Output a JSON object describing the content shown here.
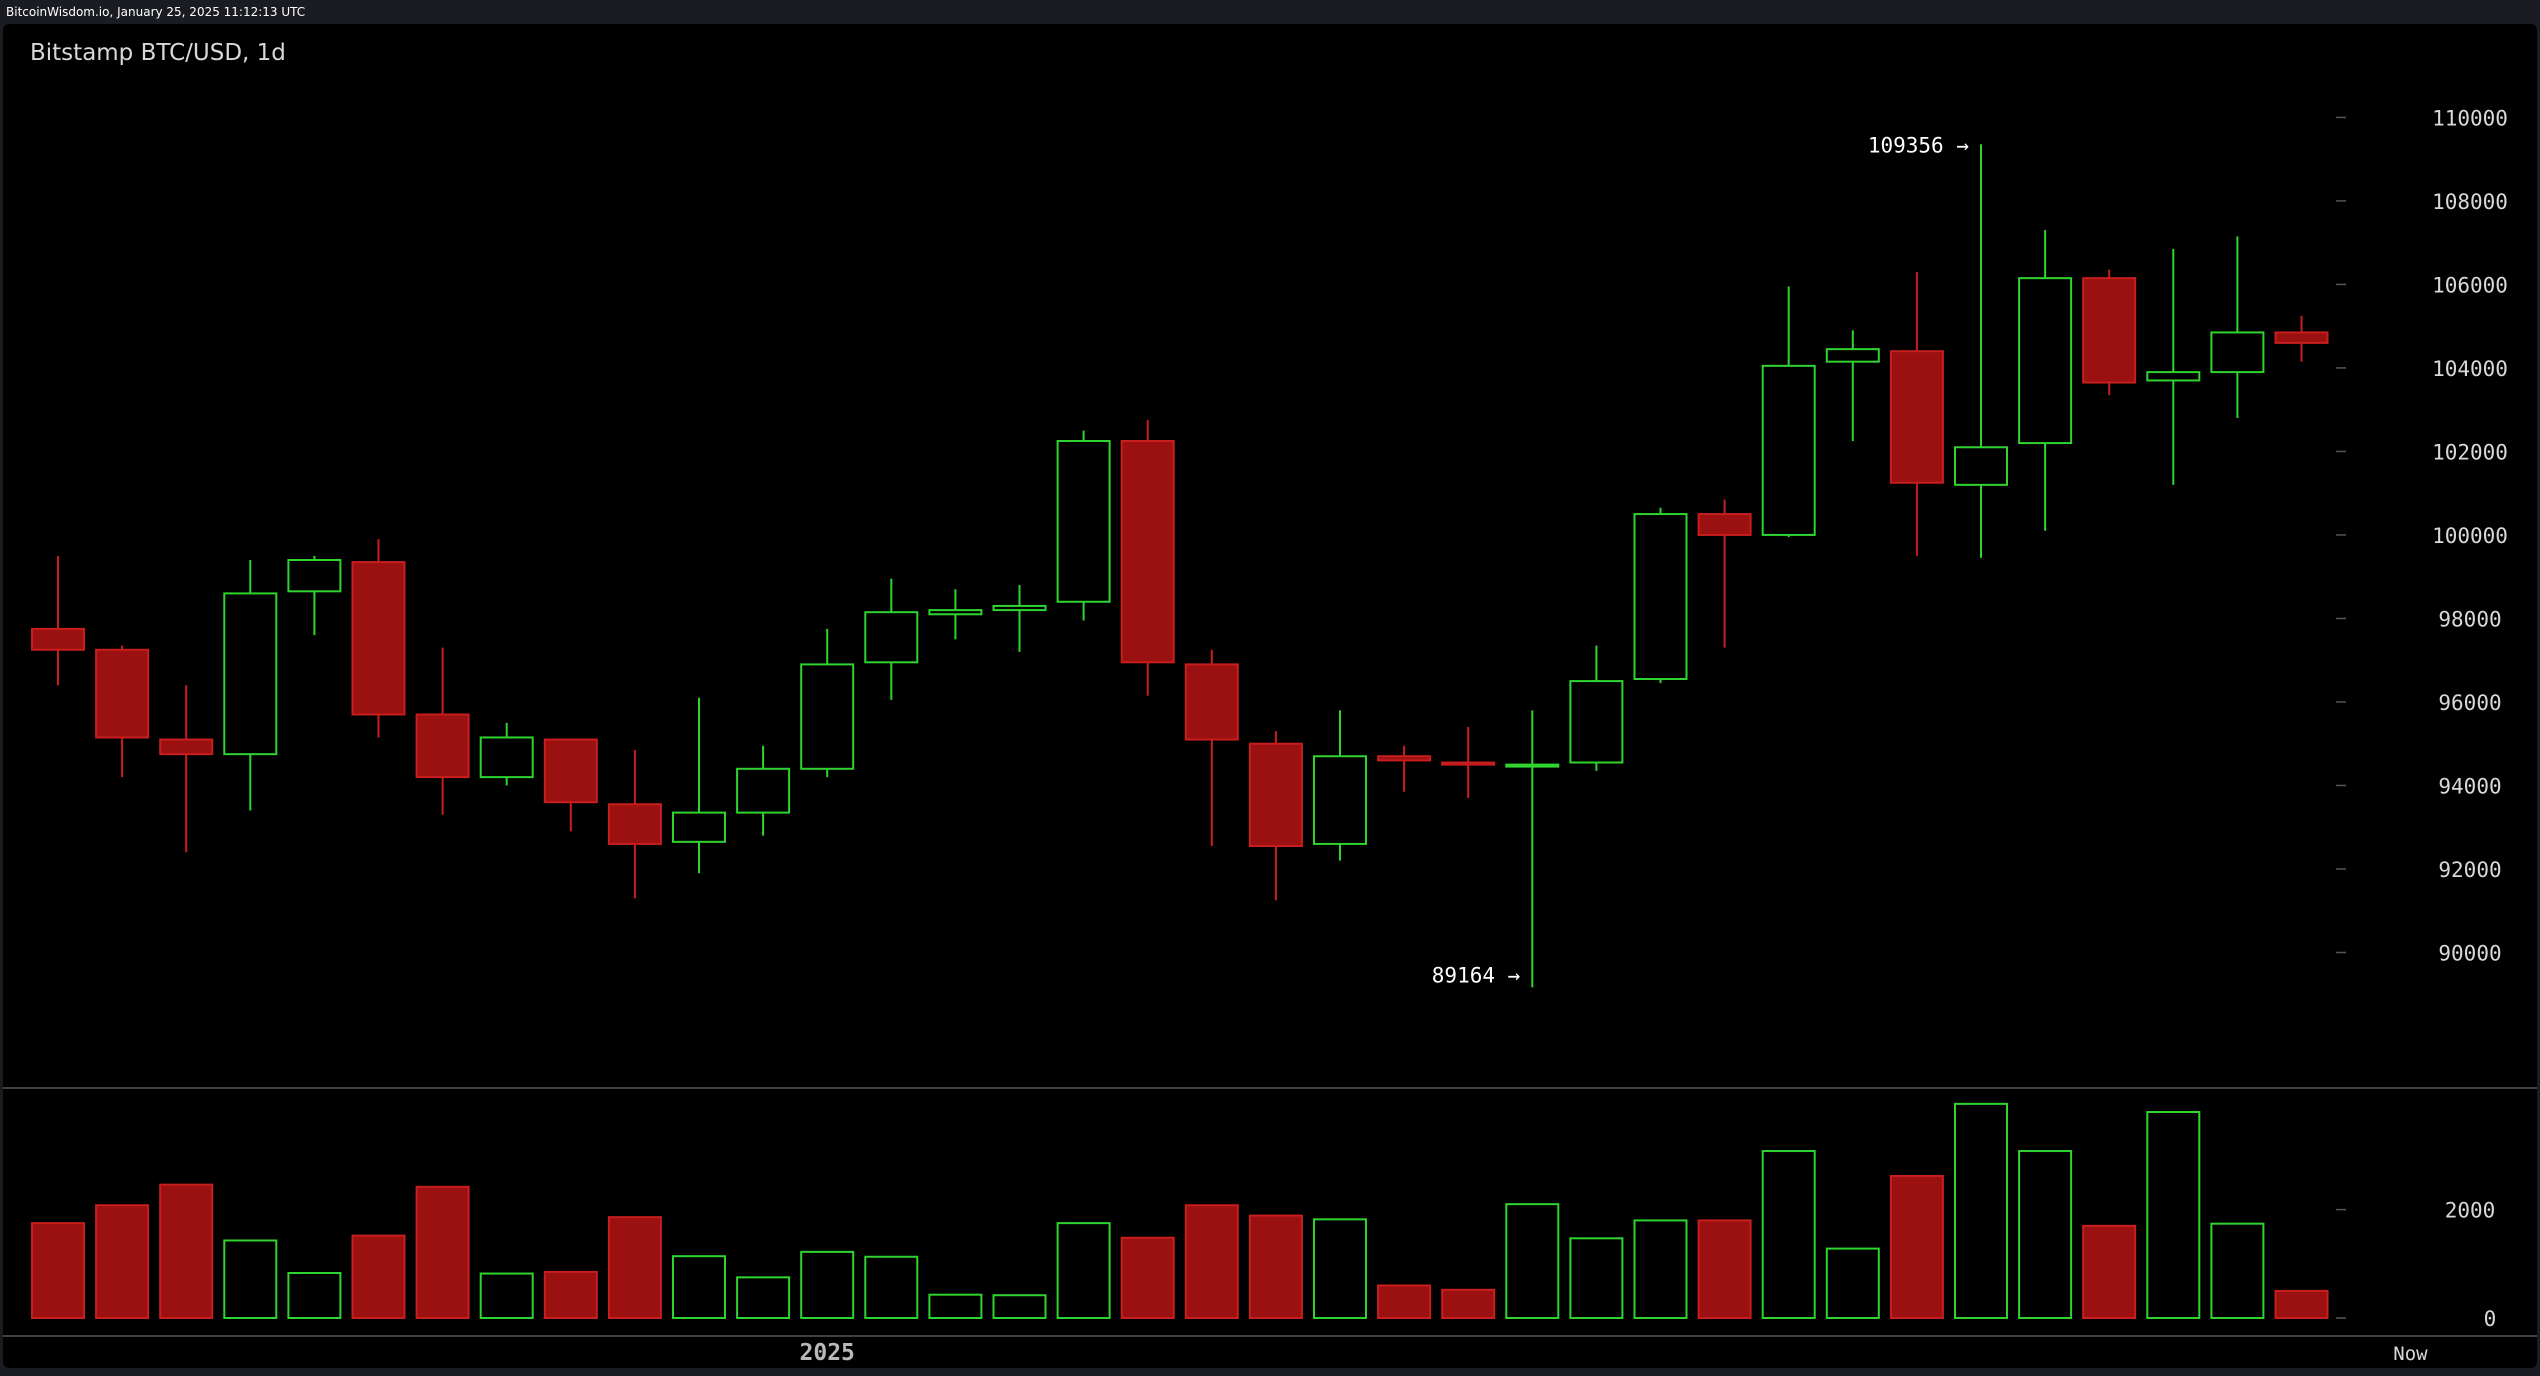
{
  "header": {
    "source_line": "BitcoinWisdom.io, January 25, 2025 11:12:13 UTC"
  },
  "chart_data": {
    "type": "candlestick",
    "title": "Bitstamp BTC/USD, 1d",
    "price_axis": {
      "ylim": [
        88000,
        110800
      ],
      "ticks": [
        90000,
        92000,
        94000,
        96000,
        98000,
        100000,
        102000,
        104000,
        106000,
        108000,
        110000
      ]
    },
    "volume_axis": {
      "ylim": [
        0,
        3800
      ],
      "ticks": [
        0,
        2000
      ]
    },
    "x_labels": [
      {
        "label": "2025",
        "index": 12
      },
      {
        "label": "Now",
        "index": 36.7
      }
    ],
    "annotations": [
      {
        "label": "109356 →",
        "index": 30,
        "value": 109356
      },
      {
        "label": "89164 →",
        "index": 23,
        "value": 89164
      }
    ],
    "colors": {
      "up": "#2fd42f",
      "down": "#9b1010",
      "down_stroke": "#c81e1e",
      "background": "#000000",
      "text": "#d8d8d8",
      "grid": "#555555"
    },
    "candles": [
      {
        "open": 97750,
        "high": 99500,
        "low": 96400,
        "close": 97250,
        "volume": 1750
      },
      {
        "open": 97250,
        "high": 97350,
        "low": 94200,
        "close": 95150,
        "volume": 2080
      },
      {
        "open": 95100,
        "high": 96400,
        "low": 92400,
        "close": 94750,
        "volume": 2460
      },
      {
        "open": 94750,
        "high": 99400,
        "low": 93400,
        "close": 98600,
        "volume": 1430
      },
      {
        "open": 98650,
        "high": 99500,
        "low": 97600,
        "close": 99400,
        "volume": 830
      },
      {
        "open": 99350,
        "high": 99900,
        "low": 95150,
        "close": 95700,
        "volume": 1520
      },
      {
        "open": 95700,
        "high": 97300,
        "low": 93300,
        "close": 94200,
        "volume": 2420
      },
      {
        "open": 94200,
        "high": 95500,
        "low": 94000,
        "close": 95150,
        "volume": 820
      },
      {
        "open": 95100,
        "high": 95100,
        "low": 92900,
        "close": 93600,
        "volume": 850
      },
      {
        "open": 93550,
        "high": 94850,
        "low": 91300,
        "close": 92600,
        "volume": 1860
      },
      {
        "open": 92650,
        "high": 96100,
        "low": 91900,
        "close": 93350,
        "volume": 1140
      },
      {
        "open": 93350,
        "high": 94950,
        "low": 92800,
        "close": 94400,
        "volume": 750
      },
      {
        "open": 94400,
        "high": 97750,
        "low": 94200,
        "close": 96900,
        "volume": 1220
      },
      {
        "open": 96950,
        "high": 98950,
        "low": 96050,
        "close": 98150,
        "volume": 1130
      },
      {
        "open": 98100,
        "high": 98700,
        "low": 97500,
        "close": 98200,
        "volume": 430
      },
      {
        "open": 98200,
        "high": 98800,
        "low": 97200,
        "close": 98300,
        "volume": 420
      },
      {
        "open": 98400,
        "high": 102500,
        "low": 97950,
        "close": 102250,
        "volume": 1750
      },
      {
        "open": 102250,
        "high": 102750,
        "low": 96150,
        "close": 96950,
        "volume": 1480
      },
      {
        "open": 96900,
        "high": 97250,
        "low": 92550,
        "close": 95100,
        "volume": 2080
      },
      {
        "open": 95000,
        "high": 95300,
        "low": 91250,
        "close": 92550,
        "volume": 1890
      },
      {
        "open": 92600,
        "high": 95800,
        "low": 92200,
        "close": 94700,
        "volume": 1820
      },
      {
        "open": 94700,
        "high": 94950,
        "low": 93850,
        "close": 94600,
        "volume": 600
      },
      {
        "open": 94550,
        "high": 95400,
        "low": 93700,
        "close": 94500,
        "volume": 520
      },
      {
        "open": 94500,
        "high": 95800,
        "low": 89164,
        "close": 94500,
        "volume": 2100
      },
      {
        "open": 94550,
        "high": 97350,
        "low": 94350,
        "close": 96500,
        "volume": 1470
      },
      {
        "open": 96550,
        "high": 100650,
        "low": 96450,
        "close": 100500,
        "volume": 1800
      },
      {
        "open": 100500,
        "high": 100850,
        "low": 97300,
        "close": 100000,
        "volume": 1800
      },
      {
        "open": 100000,
        "high": 105950,
        "low": 99950,
        "close": 104050,
        "volume": 3080
      },
      {
        "open": 104150,
        "high": 104900,
        "low": 102250,
        "close": 104450,
        "volume": 1280
      },
      {
        "open": 104400,
        "high": 106300,
        "low": 99500,
        "close": 101250,
        "volume": 2620
      },
      {
        "open": 101200,
        "high": 109356,
        "low": 99450,
        "close": 102100,
        "volume": 3950
      },
      {
        "open": 102200,
        "high": 107300,
        "low": 100100,
        "close": 106150,
        "volume": 3080
      },
      {
        "open": 106150,
        "high": 106350,
        "low": 103350,
        "close": 103650,
        "volume": 1700
      },
      {
        "open": 103700,
        "high": 106850,
        "low": 101200,
        "close": 103900,
        "volume": 3800
      },
      {
        "open": 103900,
        "high": 107150,
        "low": 102800,
        "close": 104850,
        "volume": 1740
      },
      {
        "open": 104850,
        "high": 105250,
        "low": 104150,
        "close": 104600,
        "volume": 500
      }
    ]
  }
}
